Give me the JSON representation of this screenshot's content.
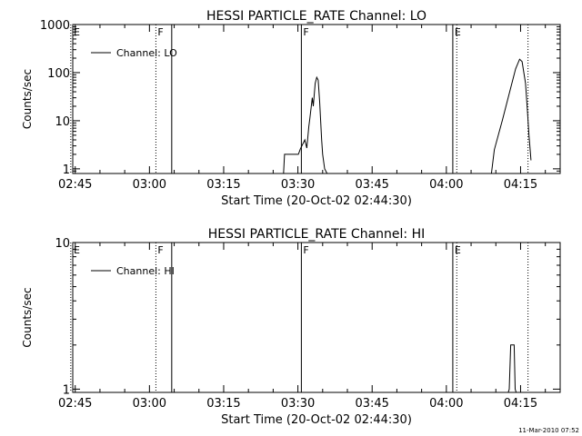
{
  "footer": {
    "timestamp": "11-Mar-2010 07:52"
  },
  "chart_data": [
    {
      "type": "line",
      "title": "HESSI PARTICLE_RATE Channel: LO",
      "xlabel": "Start Time (20-Oct-02 02:44:30)",
      "ylabel": "Counts/sec",
      "x_unit": "minutes after 02:44:30",
      "xlim": [
        0,
        98.5
      ],
      "ylim": [
        0.8,
        1000
      ],
      "y_scale": "log",
      "x_ticks": [
        {
          "x": 0.5,
          "label": "02:45"
        },
        {
          "x": 15.5,
          "label": "03:00"
        },
        {
          "x": 30.5,
          "label": "03:15"
        },
        {
          "x": 45.5,
          "label": "03:30"
        },
        {
          "x": 60.5,
          "label": "03:45"
        },
        {
          "x": 75.5,
          "label": "04:00"
        },
        {
          "x": 90.5,
          "label": "04:15"
        }
      ],
      "y_ticks": [
        {
          "y": 1,
          "label": "1"
        },
        {
          "y": 10,
          "label": "10"
        },
        {
          "y": 100,
          "label": "100"
        },
        {
          "y": 1000,
          "label": "1000"
        }
      ],
      "legend": {
        "label": "Channel: LO",
        "position": "top-left"
      },
      "markers": [
        {
          "x": -0.4,
          "label": "E",
          "style": "dotted"
        },
        {
          "x": 16.8,
          "label": "F",
          "style": "dotted"
        },
        {
          "x": 20.0,
          "label": "",
          "style": "solid"
        },
        {
          "x": 46.2,
          "label": "F",
          "style": "solid"
        },
        {
          "x": 76.8,
          "label": "E",
          "style": "solid"
        },
        {
          "x": 77.6,
          "label": "",
          "style": "dotted"
        },
        {
          "x": 92.0,
          "label": "",
          "style": "dotted"
        }
      ],
      "series": [
        {
          "segments": [
            [
              [
                42.6,
                0.8
              ],
              [
                42.8,
                2
              ],
              [
                45.6,
                2
              ],
              [
                46.0,
                2.6
              ],
              [
                46.9,
                4
              ],
              [
                47.3,
                2.7
              ],
              [
                47.7,
                7.6
              ],
              [
                47.9,
                11
              ],
              [
                48.4,
                30
              ],
              [
                48.6,
                20
              ],
              [
                49.0,
                60
              ],
              [
                49.3,
                80
              ],
              [
                49.6,
                70
              ],
              [
                49.9,
                25
              ],
              [
                50.3,
                4
              ],
              [
                50.5,
                2
              ],
              [
                50.9,
                1
              ],
              [
                51.4,
                0.8
              ]
            ],
            [
              [
                84.6,
                0.8
              ],
              [
                85.2,
                2.5
              ],
              [
                86.8,
                10
              ],
              [
                88.3,
                40
              ],
              [
                89.5,
                120
              ],
              [
                90.3,
                190
              ],
              [
                90.8,
                170
              ],
              [
                91.5,
                60
              ],
              [
                91.9,
                15
              ],
              [
                92.2,
                5
              ],
              [
                92.5,
                2
              ],
              [
                92.6,
                1.5
              ]
            ]
          ]
        }
      ]
    },
    {
      "type": "line",
      "title": "HESSI PARTICLE_RATE Channel: HI",
      "xlabel": "Start Time (20-Oct-02 02:44:30)",
      "ylabel": "Counts/sec",
      "x_unit": "minutes after 02:44:30",
      "xlim": [
        0,
        98.5
      ],
      "ylim": [
        0.95,
        10
      ],
      "y_scale": "log",
      "x_ticks": [
        {
          "x": 0.5,
          "label": "02:45"
        },
        {
          "x": 15.5,
          "label": "03:00"
        },
        {
          "x": 30.5,
          "label": "03:15"
        },
        {
          "x": 45.5,
          "label": "03:30"
        },
        {
          "x": 60.5,
          "label": "03:45"
        },
        {
          "x": 75.5,
          "label": "04:00"
        },
        {
          "x": 90.5,
          "label": "04:15"
        }
      ],
      "y_ticks": [
        {
          "y": 1,
          "label": "1"
        },
        {
          "y": 10,
          "label": "10"
        }
      ],
      "legend": {
        "label": "Channel: HI",
        "position": "top-left"
      },
      "markers": [
        {
          "x": -0.4,
          "label": "E",
          "style": "dotted"
        },
        {
          "x": 16.8,
          "label": "F",
          "style": "dotted"
        },
        {
          "x": 20.0,
          "label": "",
          "style": "solid"
        },
        {
          "x": 46.2,
          "label": "F",
          "style": "solid"
        },
        {
          "x": 76.8,
          "label": "E",
          "style": "solid"
        },
        {
          "x": 77.6,
          "label": "",
          "style": "dotted"
        },
        {
          "x": 92.0,
          "label": "",
          "style": "dotted"
        }
      ],
      "series": [
        {
          "segments": [
            [
              [
                88.0,
                0.95
              ],
              [
                88.2,
                1
              ],
              [
                88.5,
                2
              ],
              [
                89.2,
                2
              ],
              [
                89.4,
                1
              ],
              [
                89.6,
                0.95
              ]
            ]
          ]
        }
      ]
    }
  ]
}
